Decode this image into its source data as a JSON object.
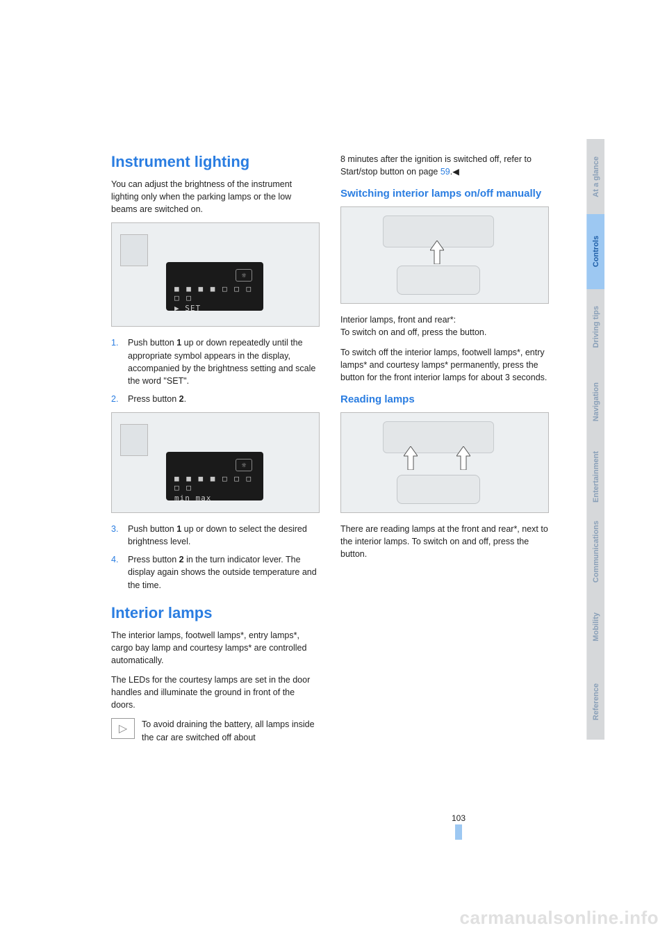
{
  "left": {
    "h1": "Instrument lighting",
    "intro": "You can adjust the brightness of the instrument lighting only when the parking lamps or the low beams are switched on.",
    "fig1_disp_row1": "■ ■ ■ ■ □ □ □ □ □",
    "fig1_disp_row2": "▶  SET",
    "steps_a": [
      "Push button 1 up or down repeatedly until the appropriate symbol appears in the display, accompanied by the brightness setting and scale the word \"SET\".",
      "Press button 2."
    ],
    "fig2_disp_row1": "■ ■ ■ ■ □ □ □ □ □",
    "fig2_disp_row2": "min        max",
    "steps_b": [
      "Push button 1 up or down to select the desired brightness level.",
      "Press button 2 in the turn indicator lever. The display again shows the outside temperature and the time."
    ],
    "h2": "Interior lamps",
    "p1": "The interior lamps, footwell lamps*, entry lamps*, cargo bay lamp and courtesy lamps* are controlled automatically.",
    "p2": "The LEDs for the courtesy lamps are set in the door handles and illuminate the ground in front of the doors.",
    "note": "To avoid draining the battery, all lamps inside the car are switched off about"
  },
  "right": {
    "cont1a": "8 minutes after the ignition is switched off, refer to Start/stop button on page ",
    "cont1_link": "59",
    "cont1b": ".◀",
    "h_sw": "Switching interior lamps on/off manually",
    "p_sw1": "Interior lamps, front and rear*:\nTo switch on and off, press the button.",
    "p_sw2": "To switch off the interior lamps, footwell lamps*, entry lamps* and courtesy lamps* permanently, press the button for the front interior lamps for about 3 seconds.",
    "h_rd": "Reading lamps",
    "p_rd": "There are reading lamps at the front and rear*, next to the interior lamps. To switch on and off, press the button."
  },
  "tabs": [
    {
      "label": "At a glance",
      "bg": "#d6d8da",
      "fg": "#8aa0b8"
    },
    {
      "label": "Controls",
      "bg": "#9dc8f2",
      "fg": "#1f5fa8"
    },
    {
      "label": "Driving tips",
      "bg": "#d6d8da",
      "fg": "#8aa0b8"
    },
    {
      "label": "Navigation",
      "bg": "#d6d8da",
      "fg": "#8aa0b8"
    },
    {
      "label": "Entertainment",
      "bg": "#d6d8da",
      "fg": "#8aa0b8"
    },
    {
      "label": "Communications",
      "bg": "#d6d8da",
      "fg": "#8aa0b8"
    },
    {
      "label": "Mobility",
      "bg": "#d6d8da",
      "fg": "#8aa0b8"
    },
    {
      "label": "Reference",
      "bg": "#d6d8da",
      "fg": "#8aa0b8"
    }
  ],
  "page_number": "103",
  "watermark": "carmanualsonline.info"
}
